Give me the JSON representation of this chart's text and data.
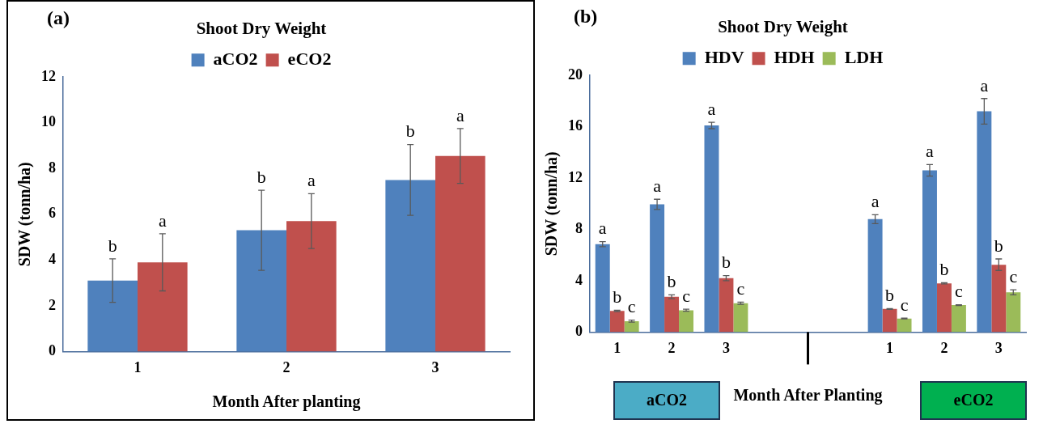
{
  "chart_data": [
    {
      "type": "bar",
      "title": "Shoot Dry Weight",
      "xlabel": "Month After planting",
      "ylabel": "SDW (tonn/ha)",
      "annotations": [
        "(a)"
      ],
      "categories": [
        "1",
        "2",
        "3"
      ],
      "ylim": [
        0,
        12
      ],
      "yticks": [
        0,
        2,
        4,
        6,
        8,
        10,
        12
      ],
      "grid": false,
      "legend": "top",
      "series": [
        {
          "name": "aCO2",
          "color": "#4f81bd",
          "values": [
            3.1,
            5.3,
            7.5
          ],
          "errors": [
            0.95,
            1.75,
            1.55
          ],
          "value_labels": [
            "b",
            "b",
            "b"
          ]
        },
        {
          "name": "eCO2",
          "color": "#c0504d",
          "values": [
            3.9,
            5.7,
            8.55
          ],
          "errors": [
            1.25,
            1.2,
            1.2
          ],
          "value_labels": [
            "a",
            "a",
            "a"
          ]
        }
      ]
    },
    {
      "type": "bar",
      "title": "Shoot Dry Weight",
      "xlabel": "Month After Planting",
      "ylabel": "SDW (tonn/ha)",
      "annotations": [
        "(b)",
        "aCO2",
        "eCO2"
      ],
      "categories": [
        "1",
        "2",
        "3",
        null,
        null,
        "1",
        "2",
        "3"
      ],
      "ylim": [
        0,
        20
      ],
      "yticks": [
        0,
        4,
        8,
        12,
        16,
        20
      ],
      "grid": false,
      "legend": "top",
      "series": [
        {
          "name": "HDV",
          "color": "#4f81bd",
          "values": [
            6.85,
            9.95,
            16.1,
            null,
            null,
            8.8,
            12.6,
            17.2
          ],
          "errors": [
            0.2,
            0.4,
            0.25,
            null,
            null,
            0.35,
            0.45,
            1.0
          ],
          "value_labels": [
            "a",
            "a",
            "a",
            null,
            null,
            "a",
            "a",
            "a"
          ]
        },
        {
          "name": "HDH",
          "color": "#c0504d",
          "values": [
            1.65,
            2.75,
            4.2,
            null,
            null,
            1.8,
            3.8,
            5.25
          ],
          "errors": [
            0.05,
            0.15,
            0.2,
            null,
            null,
            0.03,
            0.05,
            0.45
          ],
          "value_labels": [
            "b",
            "b",
            "b",
            null,
            null,
            "b",
            "b",
            "b"
          ]
        },
        {
          "name": "LDH",
          "color": "#9bbb59",
          "values": [
            0.85,
            1.7,
            2.25,
            null,
            null,
            1.05,
            2.1,
            3.1
          ],
          "errors": [
            0.08,
            0.08,
            0.08,
            null,
            null,
            0.03,
            0.03,
            0.2
          ],
          "value_labels": [
            "c",
            "c",
            "c",
            null,
            null,
            "c",
            "c",
            "c"
          ]
        }
      ]
    }
  ]
}
